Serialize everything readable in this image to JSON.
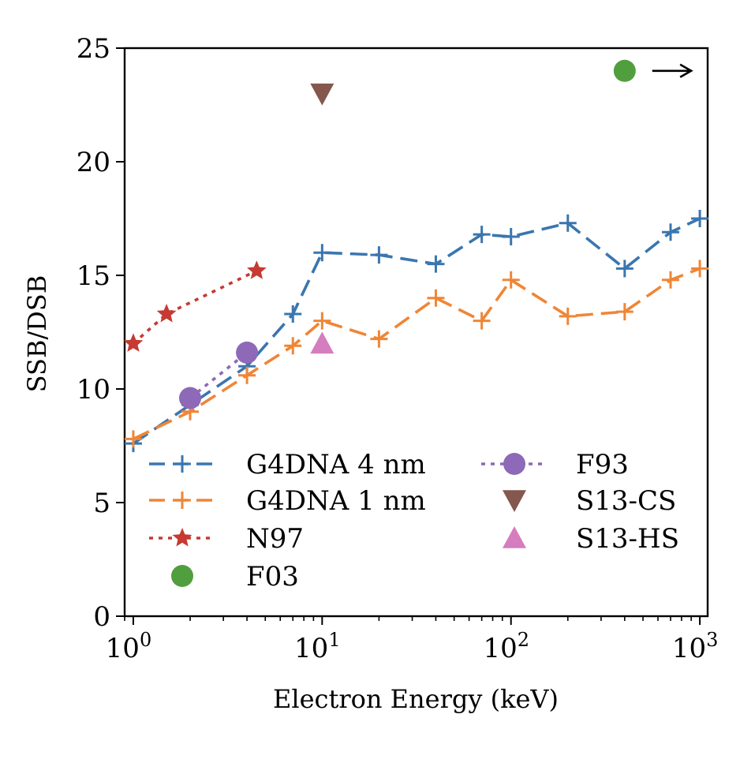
{
  "chart_data": {
    "type": "line",
    "xlabel": "Electron Energy (keV)",
    "ylabel": "SSB/DSB",
    "xscale": "log",
    "xlim": [
      0.9,
      1100
    ],
    "ylim": [
      0,
      25
    ],
    "xticks": [
      1,
      10,
      100,
      1000
    ],
    "xtick_labels": [
      {
        "base": "10",
        "exp": "0"
      },
      {
        "base": "10",
        "exp": "1"
      },
      {
        "base": "10",
        "exp": "2"
      },
      {
        "base": "10",
        "exp": "3"
      }
    ],
    "yticks": [
      0,
      5,
      10,
      15,
      20,
      25
    ],
    "grid": false,
    "legend_position": "lower-right",
    "series": [
      {
        "name": "G4DNA 4 nm",
        "color": "#3a76af",
        "line": "dashed",
        "marker": "plus",
        "x": [
          1,
          2,
          4,
          7,
          10,
          20,
          40,
          70,
          100,
          200,
          400,
          700,
          1000
        ],
        "y": [
          7.6,
          9.3,
          11.0,
          13.3,
          16.0,
          15.9,
          15.5,
          16.8,
          16.7,
          17.3,
          15.3,
          16.9,
          17.5
        ]
      },
      {
        "name": "G4DNA 1 nm",
        "color": "#ef8636",
        "line": "dashed",
        "marker": "plus",
        "x": [
          1,
          2,
          4,
          7,
          10,
          20,
          40,
          70,
          100,
          200,
          400,
          700,
          1000
        ],
        "y": [
          7.8,
          9.0,
          10.6,
          11.9,
          13.0,
          12.2,
          14.0,
          13.0,
          14.8,
          13.2,
          13.4,
          14.8,
          15.3
        ]
      },
      {
        "name": "N97",
        "color": "#c53a32",
        "line": "dotted",
        "marker": "star",
        "x": [
          1,
          1.5,
          4.5
        ],
        "y": [
          12.0,
          13.3,
          15.2
        ]
      },
      {
        "name": "F03",
        "color": "#519e3e",
        "line": "none",
        "marker": "circle",
        "x": [
          400
        ],
        "y": [
          24.0
        ]
      },
      {
        "name": "F93",
        "color": "#8d69b8",
        "line": "dotted",
        "marker": "circle",
        "x": [
          2,
          4
        ],
        "y": [
          9.6,
          11.6
        ]
      },
      {
        "name": "S13-CS",
        "color": "#84584e",
        "line": "none",
        "marker": "triangle-down",
        "x": [
          10
        ],
        "y": [
          23.0
        ]
      },
      {
        "name": "S13-HS",
        "color": "#d57dbe",
        "line": "none",
        "marker": "triangle-up",
        "x": [
          10
        ],
        "y": [
          12.0
        ]
      }
    ],
    "annotations": [
      {
        "type": "arrow",
        "from_x": 560,
        "to_x": 900,
        "y": 24.0,
        "color": "#000000"
      }
    ]
  }
}
